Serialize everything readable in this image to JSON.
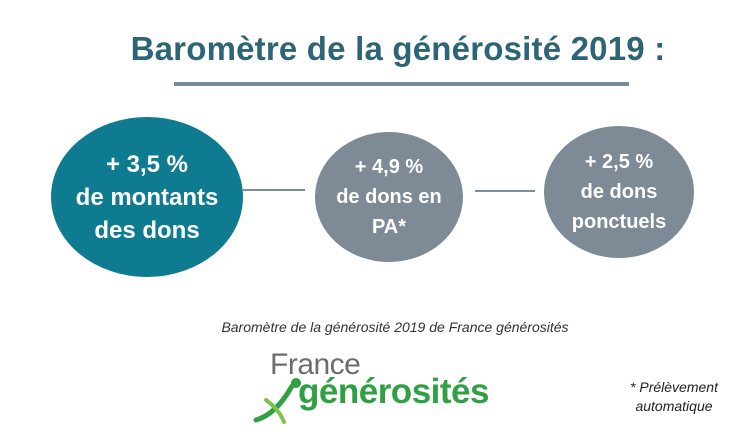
{
  "title": "Baromètre de la générosité 2019 :",
  "stats": [
    {
      "lines": [
        "+ 3,5 %",
        "de montants",
        "des dons"
      ],
      "color": "#0f7b91"
    },
    {
      "lines": [
        "+ 4,9 %",
        "de dons en",
        "PA*"
      ],
      "color": "#7e8a96"
    },
    {
      "lines": [
        "+ 2,5 %",
        "de dons",
        "ponctuels"
      ],
      "color": "#7e8a96"
    }
  ],
  "caption": "Baromètre de la générosité 2019 de France générosités",
  "logo": {
    "word1": "France",
    "word2": "générosités",
    "colors": {
      "word1": "#6d6d6d",
      "word2": "#2fa043"
    }
  },
  "footnote": [
    "* Prélèvement",
    "automatique"
  ],
  "colors": {
    "title": "#2d6478",
    "underline": "#7a8a99",
    "primary": "#0f7b91",
    "secondary": "#7e8a96"
  }
}
